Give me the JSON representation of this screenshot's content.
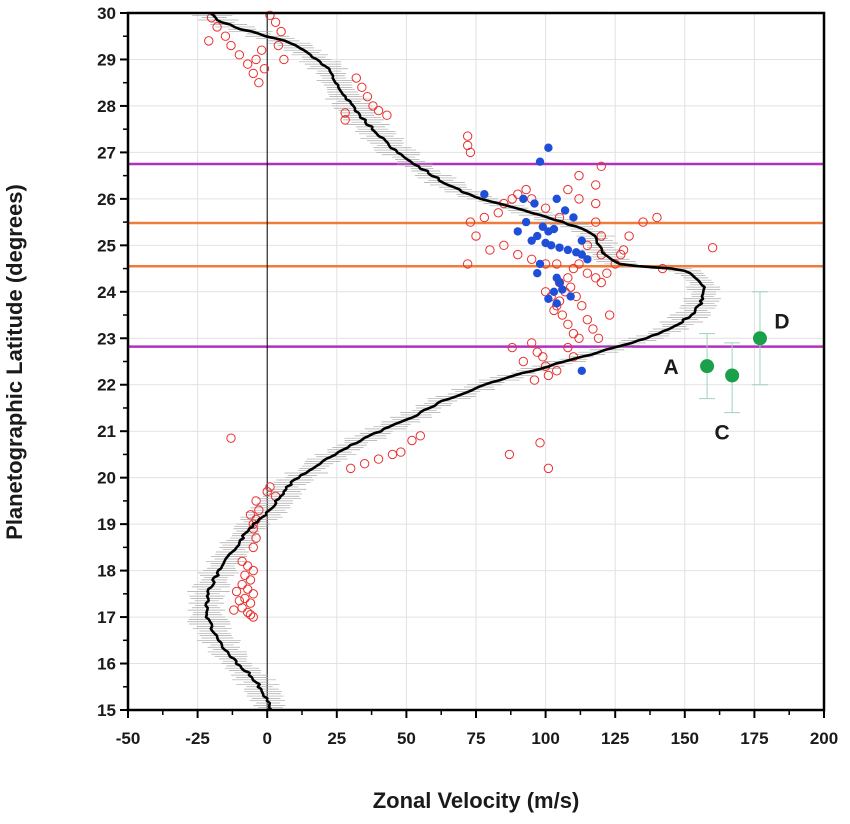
{
  "chart_data": {
    "type": "scatter",
    "title": "",
    "xlabel": "Zonal Velocity (m/s)",
    "ylabel": "Planetographic Latitude (degrees)",
    "xlim": [
      -50,
      200
    ],
    "ylim": [
      15,
      30
    ],
    "xticks": [
      "-50",
      "-25",
      "0",
      "25",
      "50",
      "75",
      "100",
      "125",
      "150",
      "175",
      "200"
    ],
    "yticks": [
      "15",
      "16",
      "17",
      "18",
      "19",
      "20",
      "21",
      "22",
      "23",
      "24",
      "25",
      "26",
      "27",
      "28",
      "29",
      "30"
    ],
    "grid": true,
    "legend": "none",
    "colors": {
      "profile": "#000000",
      "profile_error": "#a8a8a8",
      "open_points": "#e8312f",
      "blue_points": "#1f4fd8",
      "green_points": "#1aa04a",
      "green_error": "#9fd1c0",
      "orange_lines": "#f07c3c",
      "purple_lines": "#b030c0"
    },
    "reference_lines": [
      {
        "latitude": 26.75,
        "color": "purple"
      },
      {
        "latitude": 25.48,
        "color": "orange"
      },
      {
        "latitude": 24.55,
        "color": "orange"
      },
      {
        "latitude": 22.82,
        "color": "purple"
      }
    ],
    "profile": {
      "x": [
        1.5,
        0.0,
        -1.5,
        -4.0,
        -7.0,
        -11.0,
        -15.0,
        -18.5,
        -21.0,
        -22.0,
        -21.5,
        -19.0,
        -16.0,
        -12.5,
        -9.0,
        -5.0,
        -1.0,
        2.0,
        5.0,
        7.0,
        10.0,
        14.0,
        18.5,
        23.0,
        27.5,
        32.0,
        37.0,
        42.5,
        48.0,
        53.5,
        58.0,
        63.0,
        70.0,
        78.0,
        86.0,
        95.0,
        104.0,
        113.0,
        122.0,
        131.0,
        138.5,
        145.0,
        150.0,
        154.0,
        156.0,
        157.0,
        156.0,
        153.0,
        150.0,
        145.0,
        139.0,
        133.0,
        127.0,
        122.0,
        120.0,
        119.0,
        118.0,
        115.0,
        111.0,
        106.0,
        101.0,
        95.0,
        88.0,
        80.0,
        72.0,
        65.0,
        57.0,
        49.0,
        43.0,
        38.0,
        33.0,
        30.0,
        27.0,
        25.0,
        23.0,
        21.0,
        18.0,
        14.0,
        10.0,
        6.0,
        3.0,
        0.0,
        -3.0,
        -6.0,
        -9.0,
        -12.5,
        -16.0,
        -19.0,
        -20.5
      ],
      "y": [
        15.0,
        15.2,
        15.4,
        15.6,
        15.8,
        16.0,
        16.3,
        16.6,
        16.9,
        17.2,
        17.5,
        17.8,
        18.1,
        18.4,
        18.7,
        19.0,
        19.2,
        19.4,
        19.6,
        19.8,
        19.95,
        20.1,
        20.3,
        20.45,
        20.6,
        20.75,
        20.9,
        21.05,
        21.2,
        21.35,
        21.5,
        21.65,
        21.8,
        22.0,
        22.15,
        22.3,
        22.45,
        22.6,
        22.75,
        22.9,
        23.05,
        23.2,
        23.4,
        23.6,
        23.8,
        24.0,
        24.2,
        24.35,
        24.45,
        24.5,
        24.52,
        24.55,
        24.6,
        24.75,
        24.9,
        25.05,
        25.2,
        25.3,
        25.4,
        25.5,
        25.6,
        25.7,
        25.82,
        25.95,
        26.1,
        26.3,
        26.6,
        26.9,
        27.2,
        27.5,
        27.8,
        28.05,
        28.3,
        28.5,
        28.7,
        28.85,
        29.0,
        29.15,
        29.3,
        29.4,
        29.45,
        29.5,
        29.55,
        29.6,
        29.65,
        29.72,
        29.8,
        29.9,
        30.0
      ]
    },
    "open_points": [
      [
        -5,
        17.0
      ],
      [
        -7,
        17.1
      ],
      [
        -9,
        17.2
      ],
      [
        -6,
        17.3
      ],
      [
        -8,
        17.4
      ],
      [
        -5,
        17.5
      ],
      [
        -7,
        17.6
      ],
      [
        -9,
        17.7
      ],
      [
        -6,
        17.8
      ],
      [
        -8,
        17.9
      ],
      [
        -5,
        18.0
      ],
      [
        -7,
        18.1
      ],
      [
        -9,
        18.2
      ],
      [
        -6,
        17.05
      ],
      [
        -10,
        17.35
      ],
      [
        -11,
        17.55
      ],
      [
        -12,
        17.15
      ],
      [
        -5,
        18.5
      ],
      [
        -4,
        18.7
      ],
      [
        -5,
        18.9
      ],
      [
        -4,
        19.1
      ],
      [
        -3,
        19.3
      ],
      [
        -5,
        19.0
      ],
      [
        -4,
        19.5
      ],
      [
        0,
        19.7
      ],
      [
        1,
        19.8
      ],
      [
        3,
        19.6
      ],
      [
        -6,
        19.2
      ],
      [
        -13,
        20.85
      ],
      [
        30,
        20.2
      ],
      [
        35,
        20.3
      ],
      [
        40,
        20.4
      ],
      [
        45,
        20.5
      ],
      [
        48,
        20.55
      ],
      [
        52,
        20.8
      ],
      [
        55,
        20.9
      ],
      [
        -20,
        29.9
      ],
      [
        -18,
        29.7
      ],
      [
        -15,
        29.5
      ],
      [
        -13,
        29.3
      ],
      [
        -10,
        29.1
      ],
      [
        -7,
        28.9
      ],
      [
        -5,
        28.7
      ],
      [
        -3,
        28.5
      ],
      [
        -4,
        29.0
      ],
      [
        -2,
        29.2
      ],
      [
        -1,
        28.8
      ],
      [
        1,
        29.95
      ],
      [
        3,
        29.8
      ],
      [
        5,
        29.6
      ],
      [
        4,
        29.3
      ],
      [
        6,
        29.0
      ],
      [
        -21,
        29.4
      ],
      [
        32,
        28.6
      ],
      [
        34,
        28.4
      ],
      [
        36,
        28.2
      ],
      [
        38,
        28.0
      ],
      [
        40,
        27.9
      ],
      [
        43,
        27.8
      ],
      [
        28,
        27.7
      ],
      [
        28,
        27.85
      ],
      [
        72,
        27.35
      ],
      [
        72,
        27.15
      ],
      [
        73,
        27.0
      ],
      [
        73,
        25.5
      ],
      [
        78,
        25.6
      ],
      [
        83,
        25.7
      ],
      [
        85,
        25.9
      ],
      [
        88,
        26.0
      ],
      [
        90,
        26.1
      ],
      [
        93,
        26.2
      ],
      [
        95,
        26.0
      ],
      [
        100,
        25.8
      ],
      [
        105,
        25.6
      ],
      [
        108,
        26.2
      ],
      [
        112,
        26.0
      ],
      [
        118,
        26.3
      ],
      [
        120,
        26.7
      ],
      [
        112,
        26.5
      ],
      [
        118,
        25.9
      ],
      [
        75,
        25.2
      ],
      [
        72,
        24.6
      ],
      [
        80,
        24.9
      ],
      [
        85,
        25.0
      ],
      [
        90,
        24.8
      ],
      [
        95,
        24.7
      ],
      [
        100,
        24.6
      ],
      [
        104,
        24.6
      ],
      [
        105,
        24.2
      ],
      [
        108,
        24.3
      ],
      [
        110,
        24.5
      ],
      [
        112,
        24.6
      ],
      [
        115,
        24.4
      ],
      [
        118,
        24.3
      ],
      [
        120,
        24.2
      ],
      [
        122,
        24.4
      ],
      [
        125,
        24.6
      ],
      [
        128,
        24.9
      ],
      [
        130,
        25.2
      ],
      [
        135,
        25.5
      ],
      [
        140,
        25.6
      ],
      [
        142,
        24.5
      ],
      [
        120,
        25.2
      ],
      [
        120,
        24.8
      ],
      [
        118,
        25.5
      ],
      [
        115,
        25.0
      ],
      [
        100,
        24.0
      ],
      [
        102,
        23.9
      ],
      [
        104,
        23.7
      ],
      [
        106,
        23.5
      ],
      [
        108,
        23.3
      ],
      [
        110,
        23.1
      ],
      [
        112,
        23.0
      ],
      [
        103,
        23.6
      ],
      [
        105,
        23.8
      ],
      [
        107,
        24.0
      ],
      [
        109,
        24.1
      ],
      [
        111,
        23.9
      ],
      [
        113,
        23.7
      ],
      [
        115,
        23.4
      ],
      [
        117,
        23.2
      ],
      [
        119,
        23.0
      ],
      [
        123,
        23.5
      ],
      [
        127,
        24.8
      ],
      [
        95,
        22.9
      ],
      [
        97,
        22.7
      ],
      [
        99,
        22.6
      ],
      [
        100,
        22.4
      ],
      [
        101,
        22.2
      ],
      [
        104,
        22.3
      ],
      [
        108,
        22.8
      ],
      [
        110,
        22.6
      ],
      [
        88,
        22.8
      ],
      [
        92,
        22.5
      ],
      [
        96,
        22.1
      ],
      [
        98,
        20.75
      ],
      [
        101,
        20.2
      ],
      [
        87,
        20.5
      ],
      [
        160,
        24.95
      ]
    ],
    "blue_points": [
      [
        98,
        26.8
      ],
      [
        101,
        27.1
      ],
      [
        78,
        26.1
      ],
      [
        92,
        26.0
      ],
      [
        96,
        25.9
      ],
      [
        104,
        26.0
      ],
      [
        107,
        25.75
      ],
      [
        110,
        25.6
      ],
      [
        93,
        25.5
      ],
      [
        99,
        25.4
      ],
      [
        101,
        25.3
      ],
      [
        103,
        25.35
      ],
      [
        97,
        25.2
      ],
      [
        95,
        25.1
      ],
      [
        100,
        25.05
      ],
      [
        102,
        25.0
      ],
      [
        105,
        24.95
      ],
      [
        108,
        24.9
      ],
      [
        111,
        24.85
      ],
      [
        113,
        24.8
      ],
      [
        115,
        24.7
      ],
      [
        113,
        25.1
      ],
      [
        90,
        25.3
      ],
      [
        98,
        24.6
      ],
      [
        97,
        24.4
      ],
      [
        104,
        24.3
      ],
      [
        105,
        24.2
      ],
      [
        106,
        24.05
      ],
      [
        103,
        24.0
      ],
      [
        101,
        23.85
      ],
      [
        104,
        23.75
      ],
      [
        109,
        23.9
      ],
      [
        113,
        22.3
      ]
    ],
    "green_points": [
      {
        "x": 158,
        "y": 22.4,
        "label": "A",
        "err_low": 21.7,
        "err_high": 23.1
      },
      {
        "x": 167,
        "y": 22.2,
        "label": "C",
        "err_low": 21.4,
        "err_high": 22.9
      },
      {
        "x": 177,
        "y": 23.0,
        "label": "D",
        "err_low": 22.0,
        "err_high": 24.0
      }
    ]
  }
}
